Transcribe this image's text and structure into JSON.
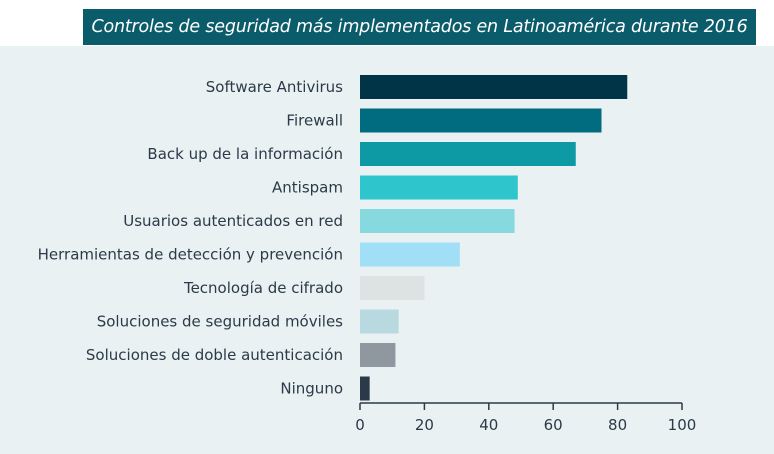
{
  "chart_data": {
    "type": "bar",
    "orientation": "horizontal",
    "title": "Controles de seguridad más implementados en Latinoamérica durante 2016",
    "categories": [
      "Software Antivirus",
      "Firewall",
      "Back up de la información",
      "Antispam",
      "Usuarios autenticados en red",
      "Herramientas de detección y prevención",
      "Tecnología de cifrado",
      "Soluciones de seguridad móviles",
      "Soluciones de doble autenticación",
      "Ninguno"
    ],
    "values": [
      83,
      75,
      67,
      49,
      48,
      31,
      20,
      12,
      11,
      3
    ],
    "bar_colors": [
      "#023447",
      "#016c80",
      "#0e9aa5",
      "#2fc5cc",
      "#85d9df",
      "#a0dff5",
      "#dde2e2",
      "#b9d9e0",
      "#8f979f",
      "#2b3a48"
    ],
    "xlim": [
      0,
      100
    ],
    "xticks": [
      0,
      20,
      40,
      60,
      80,
      100
    ],
    "xlabel": "",
    "ylabel": "",
    "grid": false,
    "legend": "none"
  },
  "colors": {
    "title_bg": "#0b5c6b",
    "panel_bg": "#eaf1f3",
    "axis": "#2b3a48",
    "text": "#2b3a48"
  }
}
